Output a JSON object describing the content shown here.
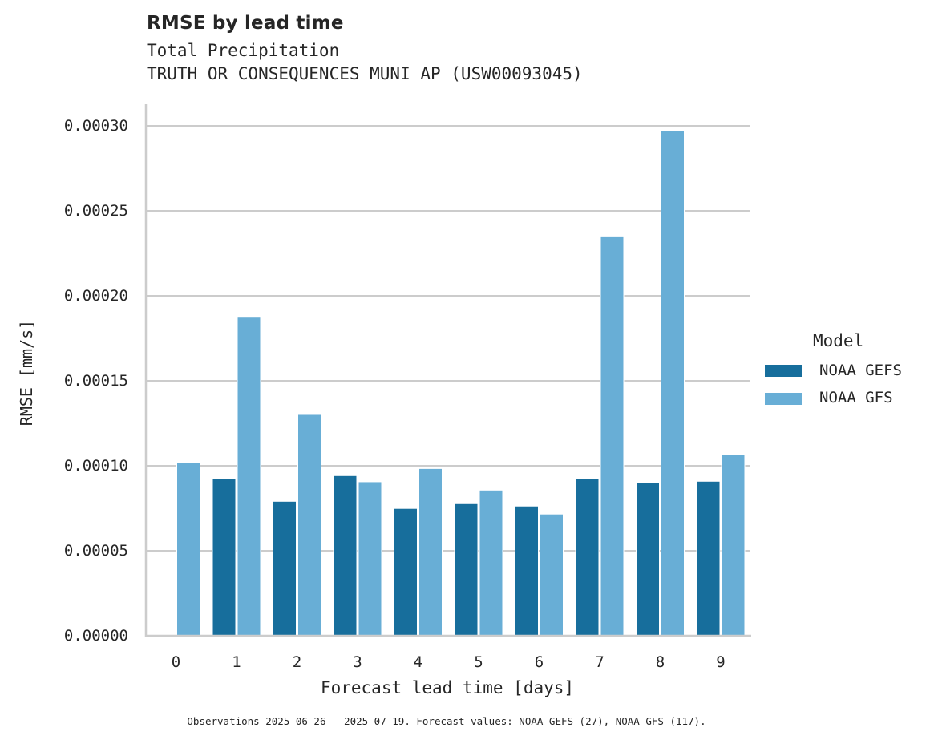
{
  "title": "RMSE by lead time",
  "subtitle_line1": "Total Precipitation",
  "subtitle_line2": "TRUTH OR CONSEQUENCES MUNI AP (USW00093045)",
  "footer": "Observations 2025-06-26 - 2025-07-19. Forecast values: NOAA GEFS (27), NOAA GFS (117).",
  "legend": {
    "title": "Model",
    "items": [
      {
        "label": "NOAA GEFS",
        "color": "#176e9c"
      },
      {
        "label": "NOAA GFS",
        "color": "#68aed6"
      }
    ]
  },
  "colors": {
    "gefs": "#176e9c",
    "gfs": "#68aed6",
    "grid": "#cccccc",
    "spine": "#cccccc",
    "text": "#262626"
  },
  "chart_data": {
    "type": "bar",
    "title": "RMSE by lead time",
    "subtitle": [
      "Total Precipitation",
      "TRUTH OR CONSEQUENCES MUNI AP (USW00093045)"
    ],
    "xlabel": "Forecast lead time [days]",
    "ylabel": "RMSE [mm/s]",
    "categories": [
      "0",
      "1",
      "2",
      "3",
      "4",
      "5",
      "6",
      "7",
      "8",
      "9"
    ],
    "series": [
      {
        "name": "NOAA GEFS",
        "color": "#176e9c",
        "values": [
          null,
          9.23e-05,
          7.91e-05,
          9.42e-05,
          7.49e-05,
          7.77e-05,
          7.63e-05,
          9.23e-05,
          9e-05,
          9.09e-05
        ]
      },
      {
        "name": "NOAA GFS",
        "color": "#68aed6",
        "values": [
          0.0001017,
          0.0001874,
          0.0001302,
          9.06e-05,
          9.84e-05,
          8.57e-05,
          7.16e-05,
          0.0002352,
          0.000297,
          0.0001065
        ]
      }
    ],
    "yticks": [
      "0.00000",
      "0.00005",
      "0.00010",
      "0.00015",
      "0.00020",
      "0.00025",
      "0.00030"
    ],
    "ytick_values": [
      0,
      5e-05,
      0.0001,
      0.00015,
      0.0002,
      0.00025,
      0.0003
    ],
    "ylim": [
      0,
      0.000312
    ],
    "grid": "horizontal",
    "legend_position": "right",
    "legend_title": "Model"
  }
}
